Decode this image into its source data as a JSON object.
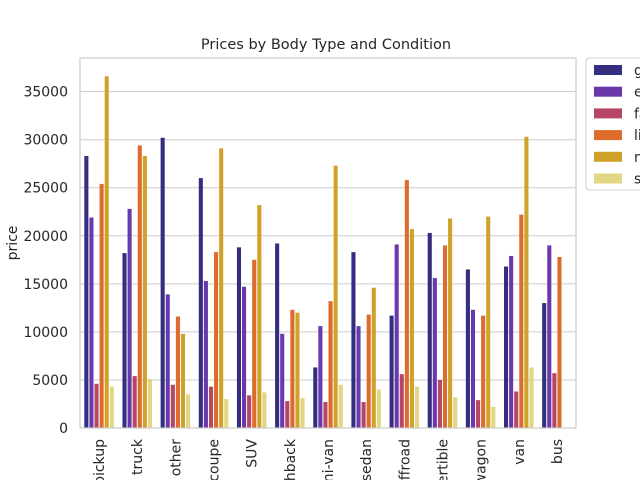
{
  "chart_data": {
    "type": "bar",
    "title": "Prices by Body Type and Condition",
    "xlabel": "",
    "ylabel": "price",
    "ylim": [
      0,
      38500
    ],
    "yticks": [
      0,
      5000,
      10000,
      15000,
      20000,
      25000,
      30000,
      35000
    ],
    "grid": "horizontal",
    "legend_position": "outside-top-right",
    "categories": [
      "pickup",
      "truck",
      "other",
      "coupe",
      "SUV",
      "hatchback",
      "mini-van",
      "sedan",
      "offroad",
      "convertible",
      "wagon",
      "van",
      "bus"
    ],
    "category_labels_visible": [
      "pickup",
      "truck",
      "other",
      "coupe",
      "SUV",
      "hback",
      "ni-van",
      "sedan",
      "ffroad",
      "ertible",
      "wagon",
      "van",
      "bus"
    ],
    "series": [
      {
        "name": "good",
        "legend_visible": "g",
        "color": "#332e80",
        "values": [
          28300,
          18200,
          30200,
          26000,
          18800,
          19200,
          6300,
          18300,
          11700,
          20300,
          16500,
          16800,
          13000
        ]
      },
      {
        "name": "excellent",
        "legend_visible": "e",
        "color": "#6a38ad",
        "values": [
          21900,
          22800,
          13900,
          15300,
          14700,
          9800,
          10600,
          10600,
          19100,
          15600,
          12300,
          17900,
          19000
        ]
      },
      {
        "name": "fair",
        "legend_visible": "fa",
        "color": "#b64566",
        "values": [
          4600,
          5400,
          4500,
          4300,
          3400,
          2800,
          2700,
          2700,
          5600,
          5000,
          2900,
          3800,
          5700
        ]
      },
      {
        "name": "like new",
        "legend_visible": "li",
        "color": "#de6a2c",
        "values": [
          25400,
          29400,
          11600,
          18300,
          17500,
          12300,
          13200,
          11800,
          25800,
          19000,
          11700,
          22200,
          17800
        ]
      },
      {
        "name": "new",
        "legend_visible": "n",
        "color": "#d0a22a",
        "values": [
          36600,
          28300,
          9800,
          29100,
          23200,
          12000,
          27300,
          14600,
          20700,
          21800,
          22000,
          30300,
          null
        ]
      },
      {
        "name": "salvage",
        "legend_visible": "s",
        "color": "#e1d681",
        "values": [
          4300,
          5100,
          3500,
          3000,
          3700,
          3100,
          4500,
          4000,
          4300,
          3200,
          2200,
          6300,
          null
        ]
      }
    ]
  }
}
